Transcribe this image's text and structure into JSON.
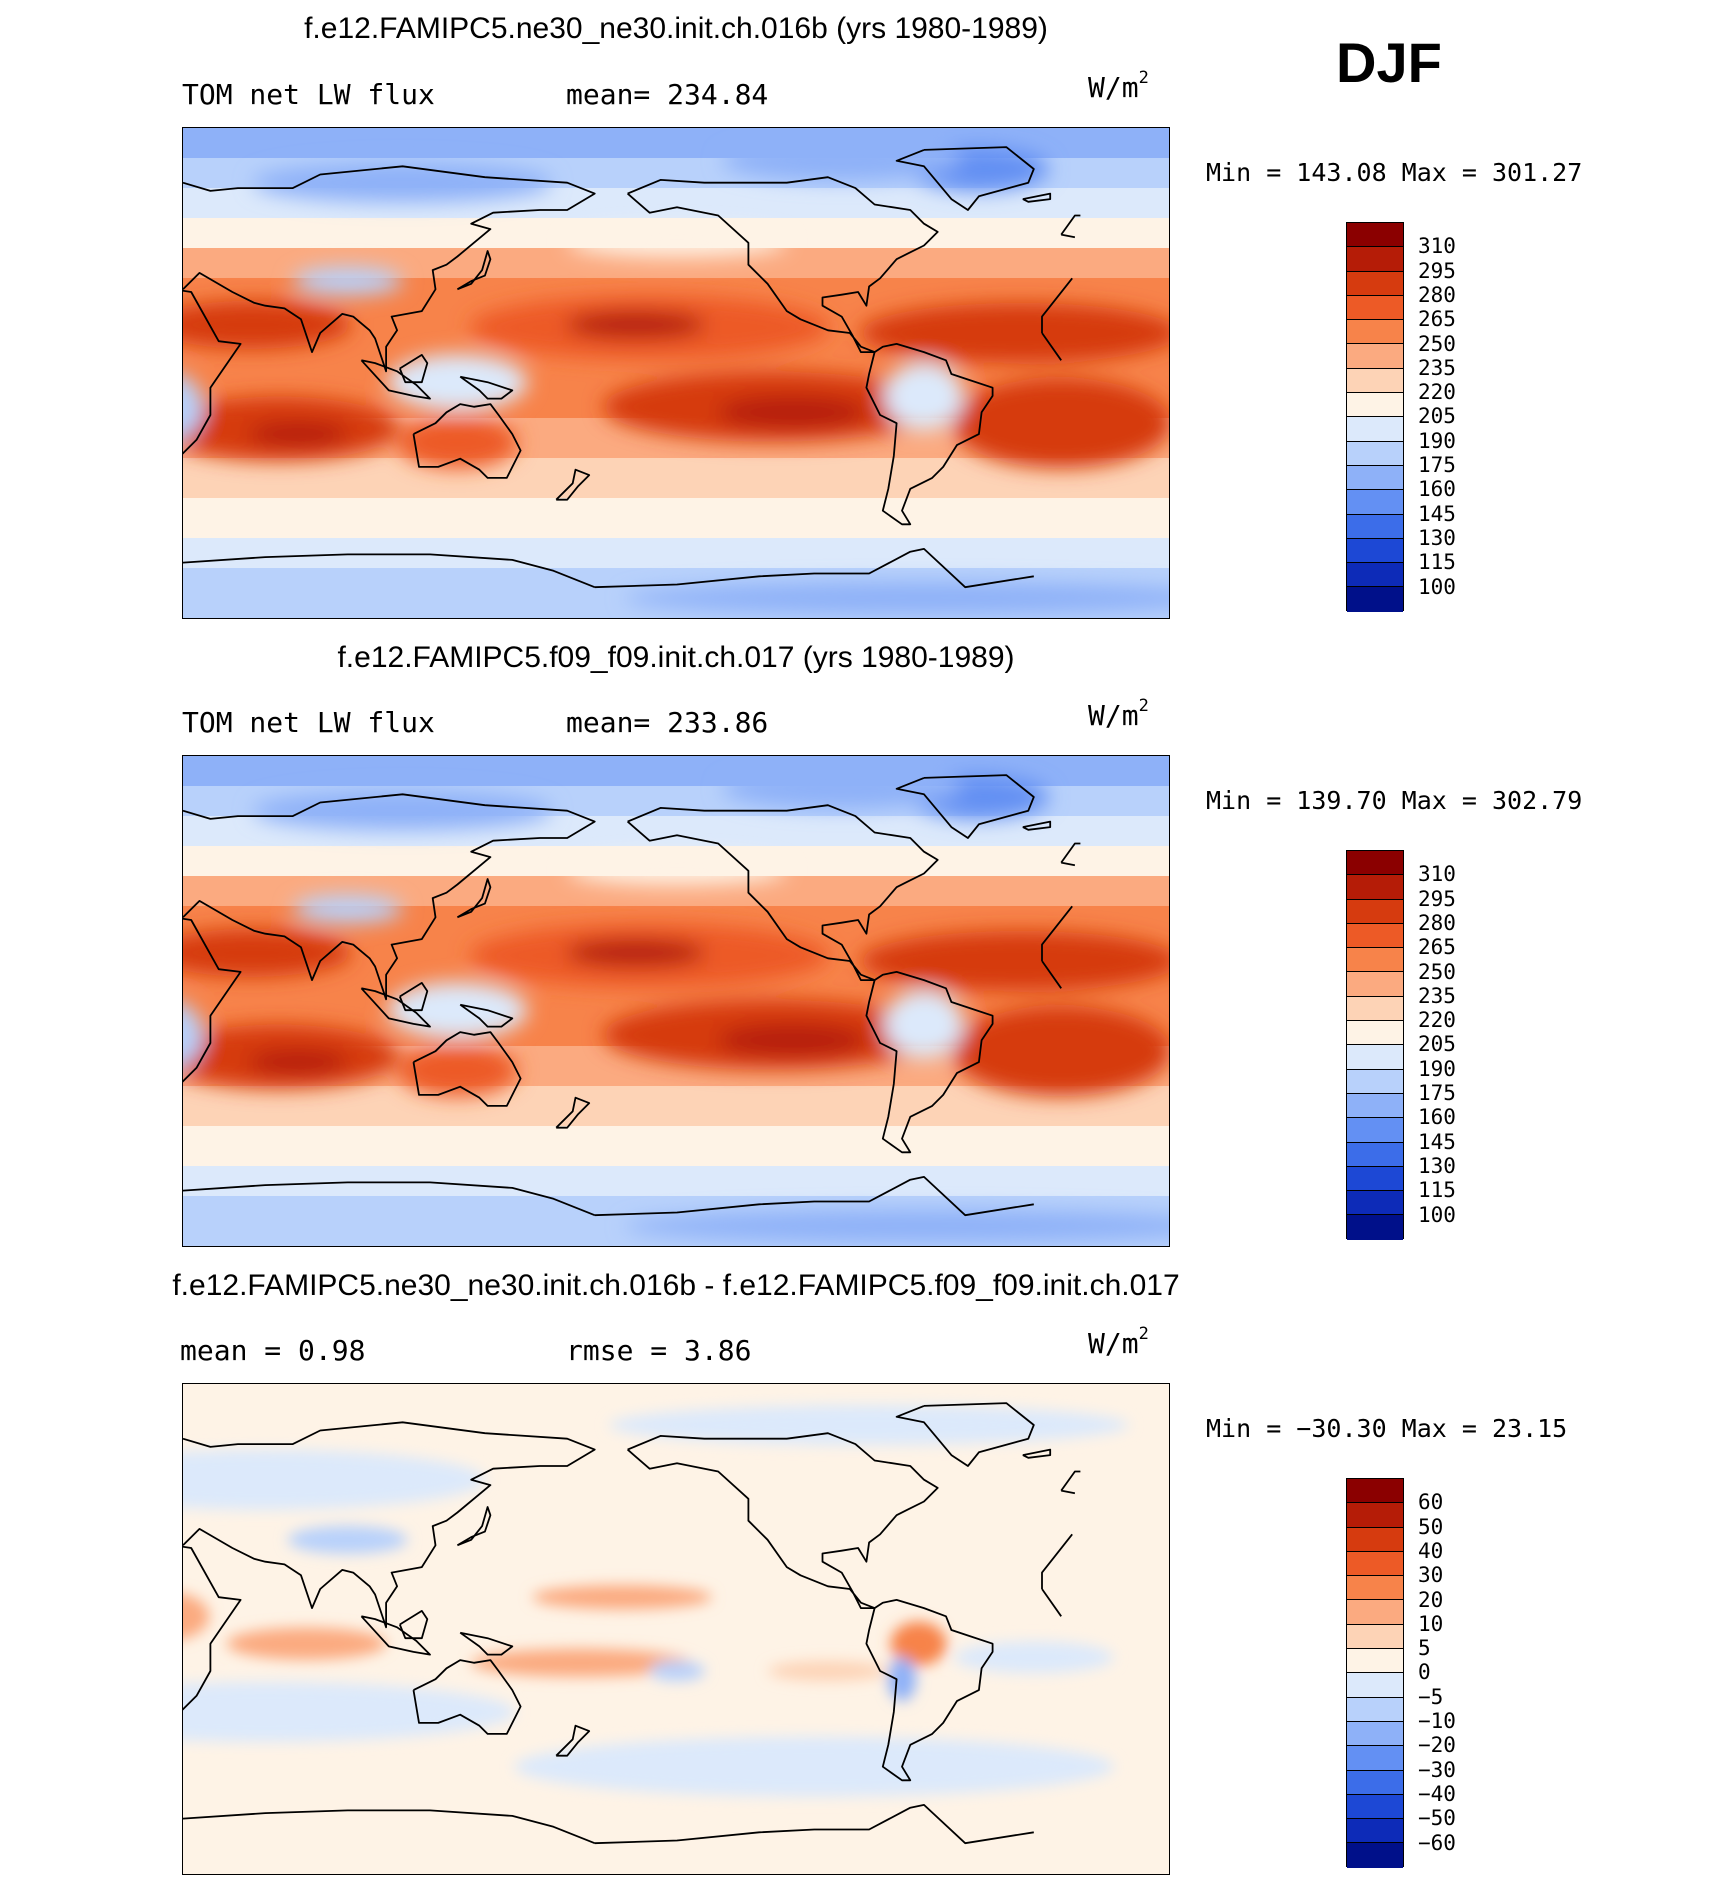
{
  "season": "DJF",
  "units_base": "W/m",
  "units_exp": "2",
  "panels": [
    {
      "title": "f.e12.FAMIPC5.ne30_ne30.init.ch.016b (yrs 1980-1989)",
      "left_label": "TOM net LW flux",
      "center_label": "mean=  234.84",
      "minmax": "Min  =  143.08  Max  =  301.27",
      "map_name": "map-panel-1"
    },
    {
      "title": "f.e12.FAMIPC5.f09_f09.init.ch.017 (yrs 1980-1989)",
      "left_label": "TOM net LW flux",
      "center_label": "mean=  233.86",
      "minmax": "Min  =  139.70  Max  =  302.79",
      "map_name": "map-panel-2"
    },
    {
      "title": "f.e12.FAMIPC5.ne30_ne30.init.ch.016b - f.e12.FAMIPC5.f09_f09.init.ch.017",
      "left_label": "mean  =    0.98",
      "center_label": "rmse  =    3.86",
      "minmax": "Min  =  −30.30  Max  =    23.15",
      "map_name": "map-panel-diff"
    }
  ],
  "chart_data": [
    {
      "type": "heatmap",
      "title": "f.e12.FAMIPC5.ne30_ne30.init.ch.016b (yrs 1980-1989)",
      "variable": "TOM net LW flux",
      "season": "DJF",
      "units": "W/m2",
      "mean": 234.84,
      "min": 143.08,
      "max": 301.27,
      "colorbar_levels": [
        310,
        295,
        280,
        265,
        250,
        235,
        220,
        205,
        190,
        175,
        160,
        145,
        130,
        115,
        100
      ],
      "colorbar_colors": [
        "#8b0000",
        "#b51c07",
        "#d63b0f",
        "#ed5a26",
        "#f7834a",
        "#fbaa80",
        "#fdd3b6",
        "#fef3e6",
        "#dce9fb",
        "#b8d1fb",
        "#8eb1f8",
        "#6390f3",
        "#3c6de9",
        "#1d48d5",
        "#0d2bb8",
        "#00108a"
      ]
    },
    {
      "type": "heatmap",
      "title": "f.e12.FAMIPC5.f09_f09.init.ch.017 (yrs 1980-1989)",
      "variable": "TOM net LW flux",
      "season": "DJF",
      "units": "W/m2",
      "mean": 233.86,
      "min": 139.7,
      "max": 302.79,
      "colorbar_levels": [
        310,
        295,
        280,
        265,
        250,
        235,
        220,
        205,
        190,
        175,
        160,
        145,
        130,
        115,
        100
      ],
      "colorbar_colors": [
        "#8b0000",
        "#b51c07",
        "#d63b0f",
        "#ed5a26",
        "#f7834a",
        "#fbaa80",
        "#fdd3b6",
        "#fef3e6",
        "#dce9fb",
        "#b8d1fb",
        "#8eb1f8",
        "#6390f3",
        "#3c6de9",
        "#1d48d5",
        "#0d2bb8",
        "#00108a"
      ]
    },
    {
      "type": "heatmap",
      "title": "f.e12.FAMIPC5.ne30_ne30.init.ch.016b - f.e12.FAMIPC5.f09_f09.init.ch.017",
      "units": "W/m2",
      "mean": 0.98,
      "rmse": 3.86,
      "min": -30.3,
      "max": 23.15,
      "colorbar_levels": [
        60,
        50,
        40,
        30,
        20,
        10,
        5,
        0,
        -5,
        -10,
        -20,
        -30,
        -40,
        -50,
        -60
      ],
      "colorbar_labels": [
        "60",
        "50",
        "40",
        "30",
        "20",
        "10",
        "5",
        "0",
        "−5",
        "−10",
        "−20",
        "−30",
        "−40",
        "−50",
        "−60"
      ],
      "colorbar_colors": [
        "#8b0000",
        "#b51c07",
        "#d63b0f",
        "#ed5a26",
        "#f7834a",
        "#fbaa80",
        "#fdd3b6",
        "#fef3e6",
        "#dce9fb",
        "#b8d1fb",
        "#8eb1f8",
        "#6390f3",
        "#3c6de9",
        "#1d48d5",
        "#0d2bb8",
        "#00108a"
      ]
    }
  ]
}
